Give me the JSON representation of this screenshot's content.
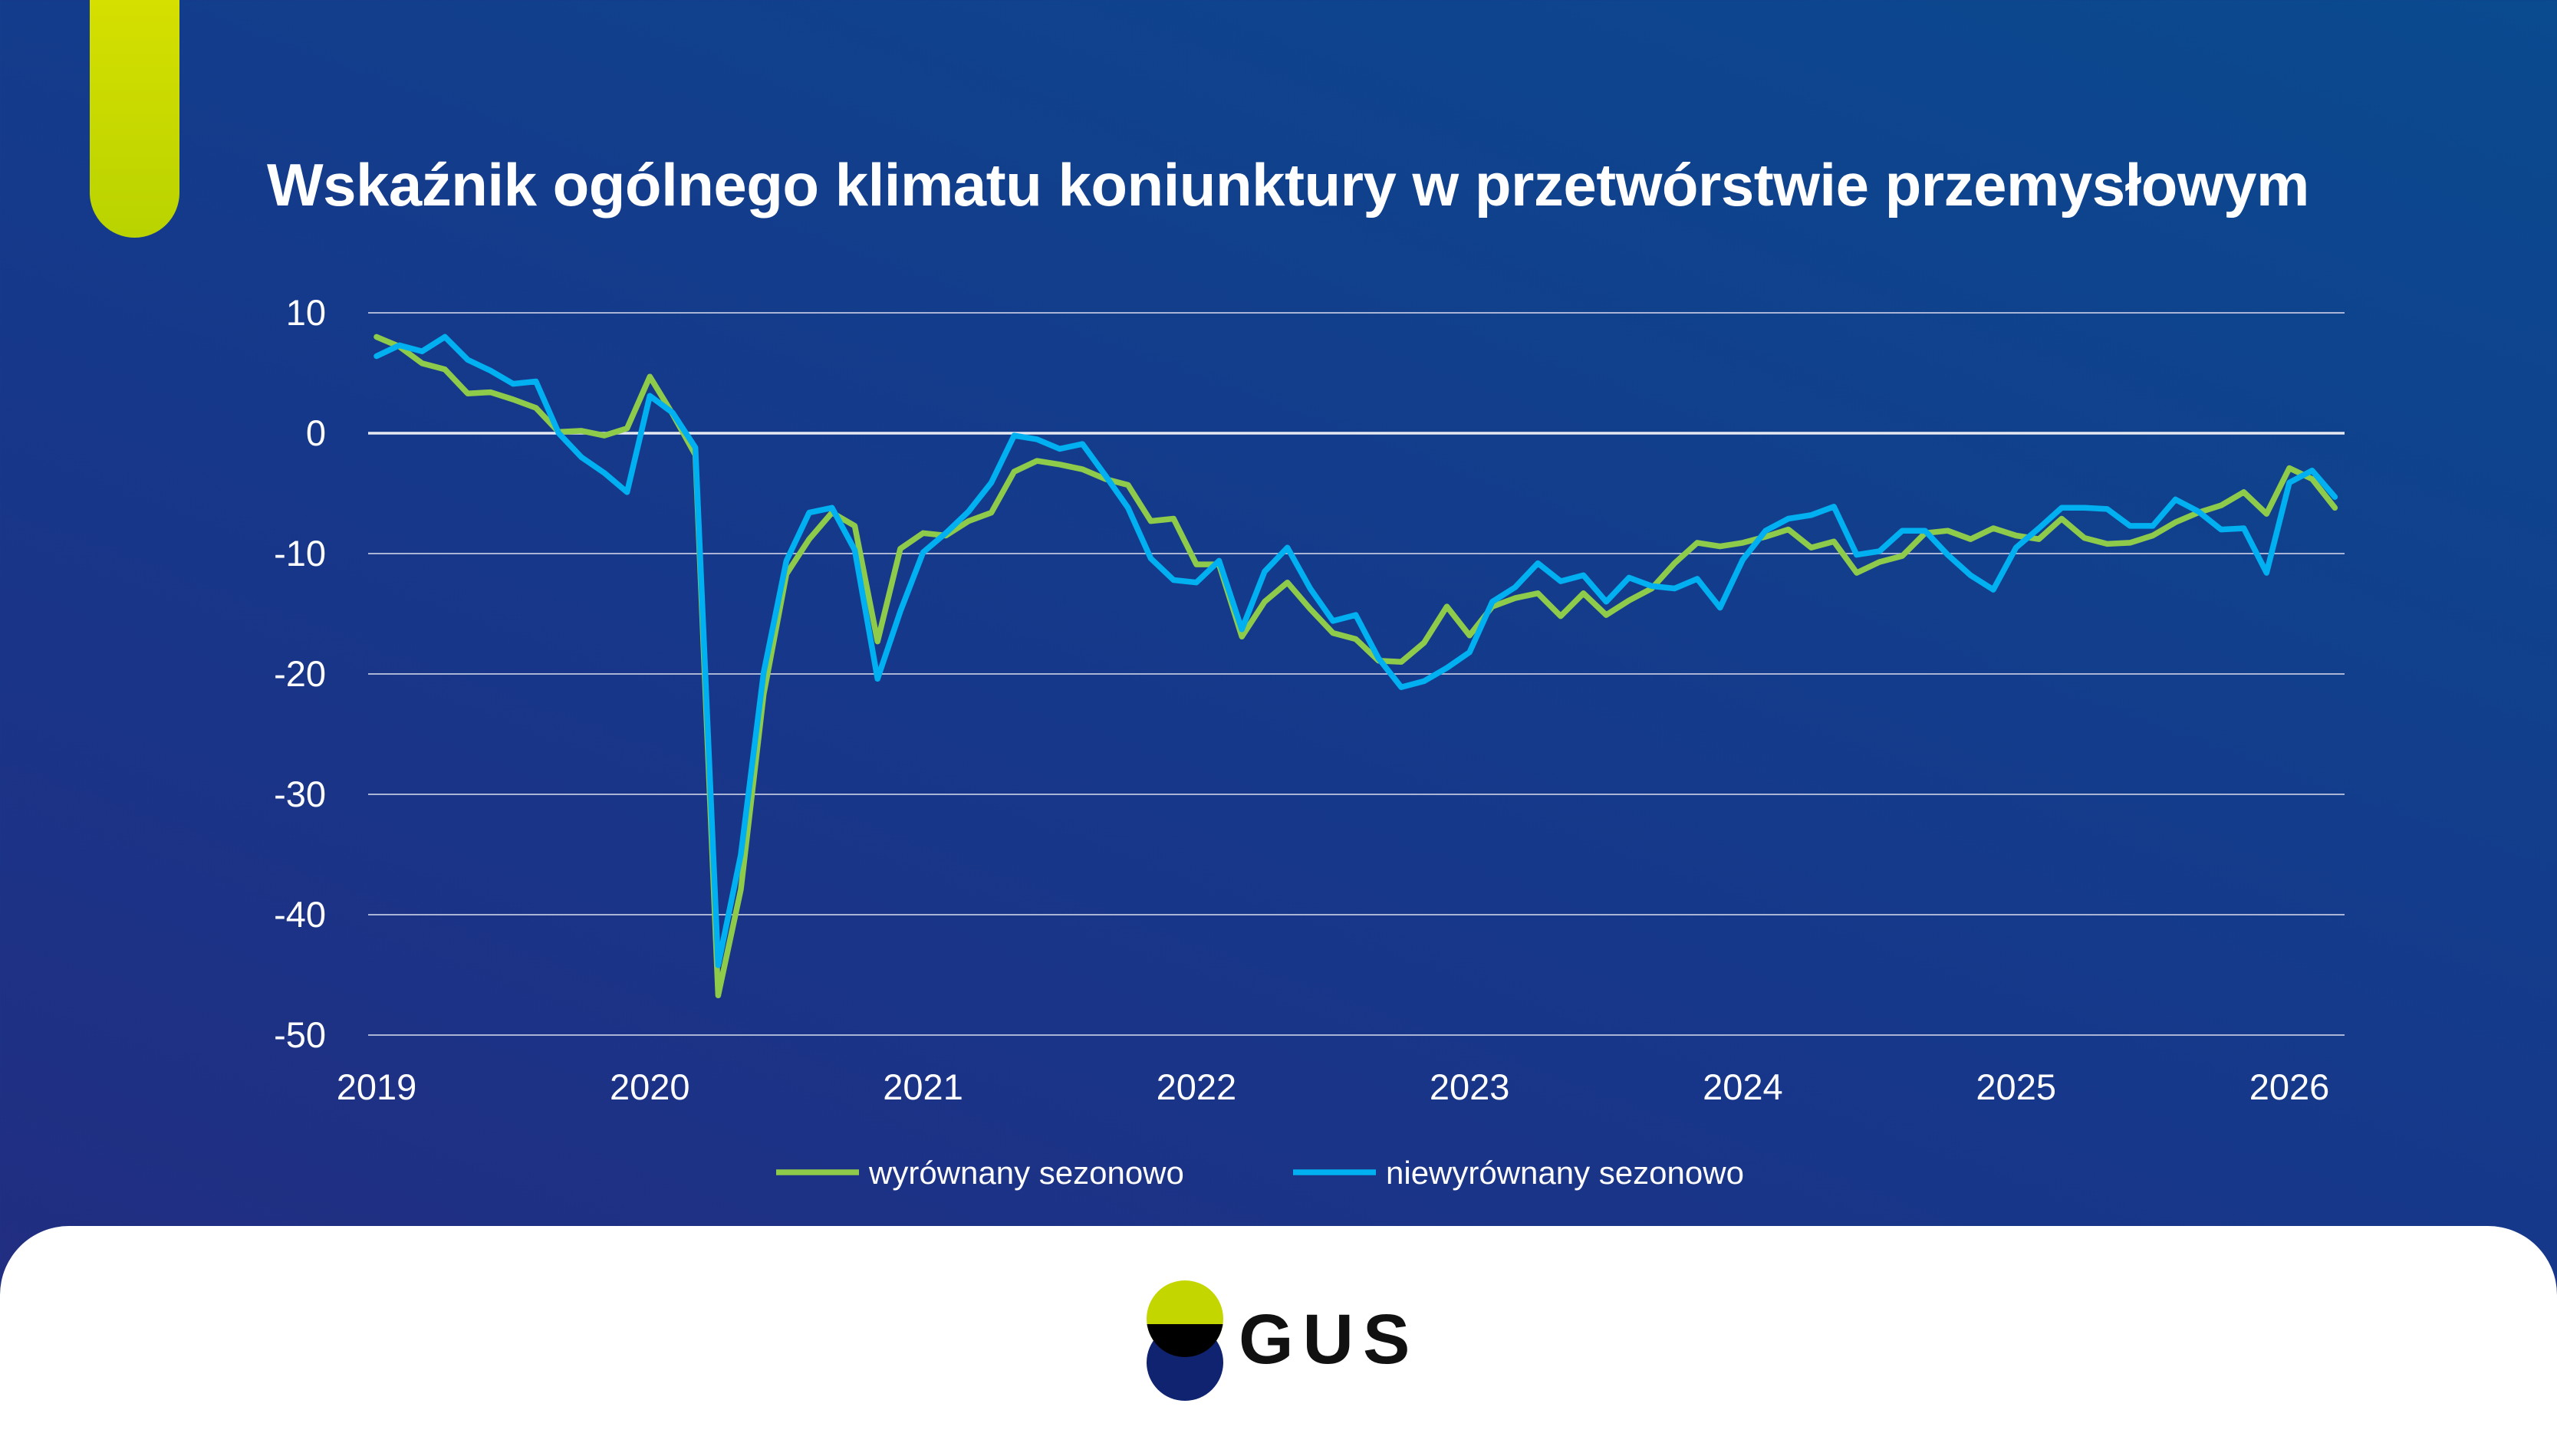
{
  "title": "Wskaźnik ogólnego klimatu koniunktury w przetwórstwie przemysłowym",
  "logo_text": "GUS",
  "colors": {
    "seasonally_adjusted": "#8fcb4a",
    "not_adjusted": "#00b0f0",
    "accent": "#c4d600",
    "background": "#17378a"
  },
  "chart_data": {
    "type": "line",
    "title": "Wskaźnik ogólnego klimatu koniunktury w przetwórstwie przemysłowym",
    "x_start": "2019-01",
    "x_frequency": "monthly",
    "x_tick_labels": [
      "2019",
      "2020",
      "2021",
      "2022",
      "2023",
      "2024",
      "2025",
      "2026"
    ],
    "y_tick_labels": [
      "10",
      "0",
      "-10",
      "-20",
      "-30",
      "-40",
      "-50"
    ],
    "y_ticks": [
      10,
      0,
      -10,
      -20,
      -30,
      -40,
      -50
    ],
    "ylim": [
      -50,
      10
    ],
    "grid": true,
    "legend_position": "bottom",
    "series": [
      {
        "name": "wyrównany sezonowo",
        "color": "#8fcb4a",
        "values": [
          8.0,
          7.2,
          5.8,
          5.3,
          3.3,
          3.4,
          2.8,
          2.1,
          0.1,
          0.2,
          -0.2,
          0.4,
          4.7,
          1.6,
          -1.8,
          -46.7,
          -37.9,
          -21.7,
          -11.7,
          -8.8,
          -6.6,
          -7.7,
          -17.3,
          -9.6,
          -8.3,
          -8.5,
          -7.3,
          -6.6,
          -3.2,
          -2.3,
          -2.6,
          -3.0,
          -3.8,
          -4.3,
          -7.3,
          -7.1,
          -10.9,
          -10.9,
          -16.9,
          -14.0,
          -12.4,
          -14.6,
          -16.6,
          -17.1,
          -18.9,
          -19.0,
          -17.4,
          -14.4,
          -16.8,
          -14.4,
          -13.7,
          -13.3,
          -15.2,
          -13.3,
          -15.1,
          -13.9,
          -12.9,
          -10.8,
          -9.1,
          -9.4,
          -9.1,
          -8.6,
          -8.0,
          -9.5,
          -9.0,
          -11.6,
          -10.7,
          -10.2,
          -8.3,
          -8.1,
          -8.8,
          -7.9,
          -8.5,
          -8.8,
          -7.1,
          -8.7,
          -9.2,
          -9.1,
          -8.5,
          -7.4,
          -6.6,
          -6.0,
          -4.9,
          -6.7,
          -2.9,
          -3.8,
          -6.2
        ]
      },
      {
        "name": "niewyrównany sezonowo",
        "color": "#00b0f0",
        "values": [
          6.4,
          7.3,
          6.8,
          8.0,
          6.1,
          5.2,
          4.1,
          4.3,
          0.0,
          -2.0,
          -3.3,
          -4.9,
          3.1,
          1.7,
          -1.2,
          -44.2,
          -35.0,
          -19.9,
          -10.6,
          -6.6,
          -6.2,
          -9.7,
          -20.4,
          -14.8,
          -9.9,
          -8.3,
          -6.5,
          -4.1,
          -0.2,
          -0.5,
          -1.3,
          -0.9,
          -3.5,
          -6.2,
          -10.4,
          -12.2,
          -12.4,
          -10.6,
          -16.3,
          -11.5,
          -9.5,
          -12.9,
          -15.6,
          -15.1,
          -18.7,
          -21.1,
          -20.6,
          -19.5,
          -18.2,
          -14.0,
          -12.8,
          -10.8,
          -12.3,
          -11.8,
          -14.0,
          -12.0,
          -12.7,
          -12.9,
          -12.1,
          -14.5,
          -10.5,
          -8.1,
          -7.1,
          -6.8,
          -6.1,
          -10.1,
          -9.8,
          -8.1,
          -8.1,
          -10.1,
          -11.8,
          -13.0,
          -9.5,
          -7.9,
          -6.2,
          -6.2,
          -6.3,
          -7.7,
          -7.7,
          -5.5,
          -6.5,
          -8.0,
          -7.9,
          -11.6,
          -4.1,
          -3.1,
          -5.3
        ]
      }
    ]
  }
}
